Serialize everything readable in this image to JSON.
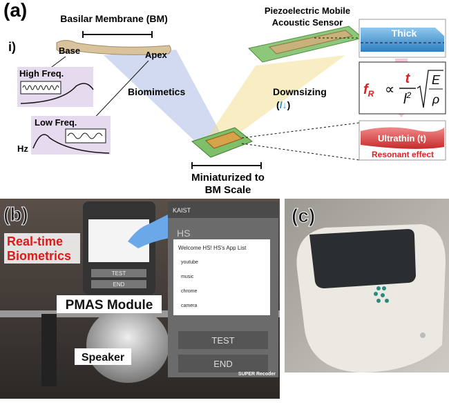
{
  "panel_a": {
    "label": "(a)",
    "sub_label": "i)",
    "bm_title": "Basilar Membrane (BM)",
    "base": "Base",
    "apex": "Apex",
    "high_freq": "High Freq.",
    "low_freq": "Low Freq.",
    "hz": "Hz",
    "biomimetics": "Biomimetics",
    "sensor_lines": [
      "Piezoelectric Mobile",
      "Acoustic Sensor"
    ],
    "thick": "Thick",
    "downsizing": "Downsizing",
    "downsizing_symbol": {
      "open": "(",
      "var": "l",
      "arrow": "↓",
      "close": ")"
    },
    "formula": {
      "f": "f",
      "sub": "R",
      "prop": "∝",
      "num": "t",
      "den": "l",
      "exp": "2",
      "E": "E",
      "rho": "ρ"
    },
    "ultrathin": "Ultrathin (t)",
    "resonant": "Resonant effect",
    "miniaturized_lines": [
      "Miniaturized to",
      "BM Scale"
    ]
  },
  "panel_b": {
    "label": "(b)",
    "overlay_lines": [
      "Real-time",
      "Biometrics"
    ],
    "module": "PMAS Module",
    "speaker": "Speaker",
    "phone": {
      "small_buttons": [
        "TEST",
        "END"
      ],
      "app_bar": "KAIST",
      "heading": "HS",
      "dialog_title": "Welcome HS! HS's App List",
      "apps": [
        "youtube",
        "music",
        "chrome",
        "camera"
      ],
      "buttons": [
        "TEST",
        "END"
      ],
      "watermark": "SUPER Recoder"
    }
  },
  "panel_c": {
    "label": "(c)"
  }
}
